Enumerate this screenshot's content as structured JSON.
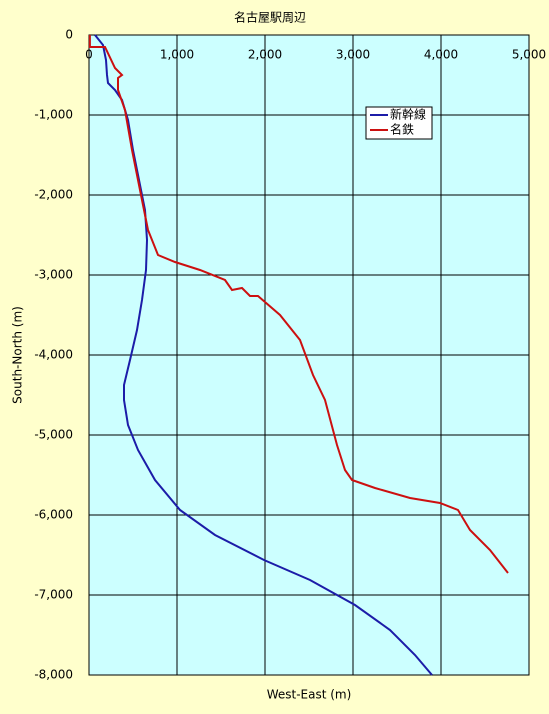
{
  "chart_data": {
    "type": "line",
    "title": "名古屋駅周辺",
    "x_label": "West-East (m)",
    "y_label": "South-North (m)",
    "xlim": [
      0,
      5000
    ],
    "ylim": [
      -8000,
      0
    ],
    "xticks": [
      0,
      {
        "value": 1000,
        "label": "1,000"
      },
      {
        "value": 2000,
        "label": "2,000"
      },
      {
        "value": 3000,
        "label": "3,000"
      },
      {
        "value": 4000,
        "label": "4,000"
      },
      {
        "value": 5000,
        "label": "5,000"
      }
    ],
    "yticks": [
      0,
      {
        "value": -1000,
        "label": "-1,000"
      },
      {
        "value": -2000,
        "label": "-2,000"
      },
      {
        "value": -3000,
        "label": "-3,000"
      },
      {
        "value": -4000,
        "label": "-4,000"
      },
      {
        "value": -5000,
        "label": "-5,000"
      },
      {
        "value": -6000,
        "label": "-6,000"
      },
      {
        "value": -7000,
        "label": "-7,000"
      },
      {
        "value": -8000,
        "label": "-8,000"
      }
    ],
    "grid": true,
    "legend": "upper right",
    "series": [
      {
        "name": "新幹線",
        "color": "#1c1ca8",
        "x": [
          68,
          159,
          193,
          205,
          216,
          295,
          375,
          443,
          500,
          568,
          636,
          659,
          648,
          602,
          545,
          466,
          398,
          398,
          443,
          557,
          750,
          1034,
          1432,
          1989,
          2511,
          3023,
          3420,
          3705,
          3898
        ],
        "y": [
          0,
          -125,
          -313,
          -500,
          -600,
          -688,
          -813,
          -1063,
          -1438,
          -1813,
          -2188,
          -2563,
          -2938,
          -3313,
          -3688,
          -4063,
          -4375,
          -4563,
          -4875,
          -5188,
          -5563,
          -5938,
          -6250,
          -6563,
          -6813,
          -7125,
          -7438,
          -7750,
          -8000
        ]
      },
      {
        "name": "名鉄",
        "color": "#cc1010",
        "x": [
          10,
          10,
          182,
          295,
          375,
          330,
          330,
          409,
          489,
          580,
          670,
          784,
          977,
          1261,
          1545,
          1625,
          1739,
          1830,
          1920,
          2170,
          2398,
          2545,
          2682,
          2773,
          2818,
          2909,
          2989,
          3250,
          3648,
          3989,
          4193,
          4330,
          4557,
          4761
        ],
        "y": [
          0,
          -150,
          -150,
          -413,
          -500,
          -538,
          -688,
          -938,
          -1438,
          -1938,
          -2438,
          -2750,
          -2838,
          -2938,
          -3063,
          -3188,
          -3163,
          -3263,
          -3263,
          -3500,
          -3813,
          -4250,
          -4563,
          -4938,
          -5125,
          -5438,
          -5563,
          -5663,
          -5788,
          -5850,
          -5938,
          -6188,
          -6438,
          -6725
        ]
      }
    ]
  }
}
